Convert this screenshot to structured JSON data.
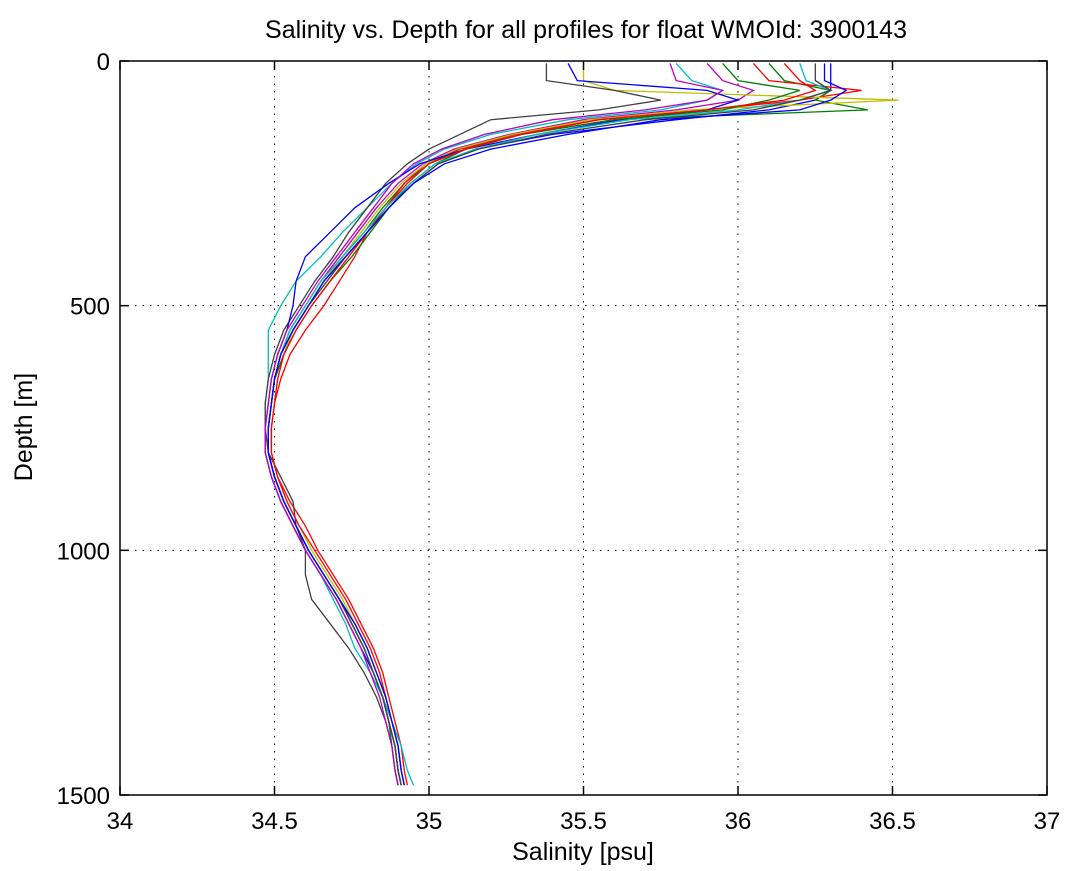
{
  "chart_data": {
    "type": "line",
    "title": "Salinity vs. Depth for all profiles for float WMOId: 3900143",
    "xlabel": "Salinity [psu]",
    "ylabel": "Depth [m]",
    "xlim": [
      34,
      37
    ],
    "ylim": [
      0,
      1500
    ],
    "y_reversed": true,
    "grid": true,
    "x_ticks": [
      34,
      34.5,
      35,
      35.5,
      36,
      36.5,
      37
    ],
    "x_tick_labels": [
      "34",
      "34.5",
      "35",
      "35.5",
      "36",
      "36.5",
      "37"
    ],
    "y_ticks": [
      0,
      500,
      1000,
      1500
    ],
    "y_tick_labels": [
      "0",
      "500",
      "1000",
      "1500"
    ],
    "series_colors": [
      "#0000ff",
      "#008000",
      "#ff0000",
      "#00bfbf",
      "#bf00bf",
      "#bfbf00",
      "#404040"
    ],
    "mean_profile": {
      "depth": [
        5,
        40,
        60,
        80,
        100,
        120,
        150,
        180,
        210,
        250,
        300,
        350,
        400,
        450,
        500,
        550,
        600,
        650,
        700,
        750,
        800,
        850,
        900,
        950,
        1000,
        1050,
        1100,
        1150,
        1200,
        1250,
        1300,
        1350,
        1400,
        1450,
        1480
      ],
      "salinity": [
        36.0,
        36.02,
        36.1,
        36.05,
        35.85,
        35.5,
        35.25,
        35.08,
        34.97,
        34.9,
        34.83,
        34.77,
        34.71,
        34.65,
        34.6,
        34.55,
        34.52,
        34.5,
        34.49,
        34.48,
        34.48,
        34.5,
        34.53,
        34.57,
        34.61,
        34.66,
        34.71,
        34.75,
        34.79,
        34.82,
        34.85,
        34.87,
        34.89,
        34.9,
        34.91
      ]
    },
    "series": [
      {
        "name": "",
        "color": "#0000ff",
        "salinity": [
          36.3,
          36.3,
          36.3,
          36.25,
          36.1,
          35.8,
          35.4,
          35.15,
          35.03,
          34.95,
          34.87,
          34.8,
          34.73,
          34.66,
          34.61,
          34.56,
          34.53,
          34.5,
          34.49,
          34.48,
          34.48,
          34.5,
          34.53,
          34.57,
          34.61,
          34.66,
          34.71,
          34.76,
          34.8,
          34.83,
          34.86,
          34.88,
          34.9,
          34.91,
          34.92
        ]
      },
      {
        "name": "",
        "color": "#008000",
        "salinity": [
          36.1,
          36.15,
          36.3,
          36.25,
          36.42,
          35.6,
          35.3,
          35.1,
          35.0,
          34.92,
          34.85,
          34.79,
          34.72,
          34.66,
          34.61,
          34.56,
          34.52,
          34.5,
          34.49,
          34.48,
          34.48,
          34.5,
          34.53,
          34.57,
          34.61,
          34.66,
          34.71,
          34.75,
          34.79,
          34.82,
          34.85,
          34.87,
          34.88,
          34.89,
          34.9
        ]
      },
      {
        "name": "",
        "color": "#ff0000",
        "salinity": [
          36.05,
          36.1,
          36.4,
          36.2,
          35.9,
          35.55,
          35.28,
          35.1,
          34.99,
          34.92,
          34.86,
          34.8,
          34.76,
          34.71,
          34.66,
          34.6,
          34.55,
          34.52,
          34.5,
          34.49,
          34.49,
          34.51,
          34.55,
          34.6,
          34.64,
          34.69,
          34.74,
          34.78,
          34.82,
          34.85,
          34.87,
          34.89,
          34.91,
          34.92,
          34.93
        ]
      },
      {
        "name": "",
        "color": "#00bfbf",
        "salinity": [
          35.8,
          35.85,
          35.95,
          35.9,
          35.75,
          35.45,
          35.2,
          35.05,
          34.96,
          34.88,
          34.8,
          34.72,
          34.65,
          34.57,
          34.52,
          34.48,
          34.48,
          34.48,
          34.47,
          34.47,
          34.47,
          34.49,
          34.52,
          34.56,
          34.6,
          34.65,
          34.69,
          34.73,
          34.76,
          34.81,
          34.85,
          34.88,
          34.91,
          34.93,
          34.95
        ]
      },
      {
        "name": "",
        "color": "#bf00bf",
        "salinity": [
          35.9,
          35.95,
          36.05,
          36.0,
          35.8,
          35.5,
          35.26,
          35.08,
          34.98,
          34.9,
          34.83,
          34.77,
          34.71,
          34.65,
          34.6,
          34.55,
          34.52,
          34.5,
          34.49,
          34.48,
          34.48,
          34.5,
          34.53,
          34.57,
          34.61,
          34.66,
          34.71,
          34.75,
          34.79,
          34.82,
          34.85,
          34.87,
          34.89,
          34.9,
          34.91
        ]
      },
      {
        "name": "",
        "color": "#bfbf00",
        "salinity": [
          35.5,
          35.5,
          35.6,
          36.52,
          35.85,
          35.52,
          35.27,
          35.09,
          34.99,
          34.91,
          34.84,
          34.78,
          34.72,
          34.66,
          34.61,
          34.56,
          34.53,
          34.51,
          34.5,
          34.49,
          34.49,
          34.51,
          34.54,
          34.58,
          34.62,
          34.67,
          34.72,
          34.76,
          34.8,
          34.83,
          34.86,
          34.88,
          34.9,
          34.91,
          34.92
        ]
      },
      {
        "name": "",
        "color": "#404040",
        "salinity": [
          35.38,
          35.38,
          35.6,
          35.75,
          35.55,
          35.2,
          35.1,
          35.0,
          34.93,
          34.86,
          34.8,
          34.74,
          34.69,
          34.63,
          34.58,
          34.53,
          34.5,
          34.48,
          34.47,
          34.47,
          34.48,
          34.52,
          34.56,
          34.57,
          34.6,
          34.6,
          34.62,
          34.68,
          34.74,
          34.79,
          34.83,
          34.86,
          34.88,
          34.89,
          34.9
        ]
      },
      {
        "name": "",
        "color": "#0000ff",
        "salinity": [
          35.45,
          35.48,
          35.9,
          36.0,
          35.9,
          35.62,
          35.35,
          35.12,
          34.97,
          34.87,
          34.76,
          34.68,
          34.6,
          34.57,
          34.56,
          34.54,
          34.51,
          34.49,
          34.48,
          34.47,
          34.47,
          34.49,
          34.52,
          34.56,
          34.6,
          34.65,
          34.7,
          34.74,
          34.78,
          34.82,
          34.85,
          34.87,
          34.89,
          34.9,
          34.91
        ]
      },
      {
        "name": "",
        "color": "#008000",
        "salinity": [
          35.95,
          36.0,
          36.2,
          36.1,
          35.95,
          35.6,
          35.3,
          35.12,
          35.02,
          34.94,
          34.87,
          34.81,
          34.75,
          34.68,
          34.62,
          34.57,
          34.53,
          34.5,
          34.49,
          34.48,
          34.48,
          34.5,
          34.53,
          34.57,
          34.61,
          34.66,
          34.71,
          34.75,
          34.79,
          34.82,
          34.85,
          34.87,
          34.89,
          34.9,
          34.91
        ]
      },
      {
        "name": "",
        "color": "#ff0000",
        "salinity": [
          36.15,
          36.2,
          36.25,
          36.15,
          35.9,
          35.55,
          35.3,
          35.12,
          35.0,
          34.93,
          34.86,
          34.8,
          34.74,
          34.68,
          34.62,
          34.57,
          34.53,
          34.51,
          34.5,
          34.49,
          34.49,
          34.51,
          34.54,
          34.58,
          34.63,
          34.68,
          34.73,
          34.77,
          34.81,
          34.84,
          34.86,
          34.88,
          34.9,
          34.91,
          34.92
        ]
      },
      {
        "name": "",
        "color": "#00bfbf",
        "salinity": [
          36.2,
          36.22,
          36.3,
          36.2,
          36.0,
          35.65,
          35.35,
          35.15,
          35.02,
          34.94,
          34.86,
          34.79,
          34.72,
          34.65,
          34.6,
          34.55,
          34.52,
          34.5,
          34.49,
          34.48,
          34.48,
          34.5,
          34.53,
          34.57,
          34.61,
          34.66,
          34.71,
          34.75,
          34.79,
          34.82,
          34.85,
          34.87,
          34.89,
          34.9,
          34.91
        ]
      },
      {
        "name": "",
        "color": "#bf00bf",
        "salinity": [
          35.78,
          35.8,
          35.95,
          35.9,
          35.7,
          35.4,
          35.18,
          35.04,
          34.95,
          34.88,
          34.82,
          34.76,
          34.7,
          34.64,
          34.59,
          34.54,
          34.51,
          34.49,
          34.48,
          34.47,
          34.47,
          34.49,
          34.52,
          34.56,
          34.6,
          34.65,
          34.7,
          34.74,
          34.78,
          34.81,
          34.84,
          34.86,
          34.88,
          34.89,
          34.9
        ]
      },
      {
        "name": "",
        "color": "#404040",
        "salinity": [
          36.25,
          36.25,
          36.3,
          36.2,
          36.05,
          35.7,
          35.38,
          35.16,
          35.03,
          34.95,
          34.87,
          34.8,
          34.73,
          34.67,
          34.61,
          34.56,
          34.52,
          34.5,
          34.49,
          34.48,
          34.48,
          34.5,
          34.53,
          34.57,
          34.61,
          34.66,
          34.71,
          34.75,
          34.79,
          34.82,
          34.85,
          34.87,
          34.89,
          34.9,
          34.91
        ]
      },
      {
        "name": "",
        "color": "#0000ff",
        "salinity": [
          36.28,
          36.28,
          36.35,
          36.3,
          36.2,
          35.75,
          35.45,
          35.2,
          35.05,
          34.95,
          34.87,
          34.8,
          34.73,
          34.66,
          34.61,
          34.56,
          34.52,
          34.5,
          34.49,
          34.48,
          34.48,
          34.5,
          34.53,
          34.57,
          34.61,
          34.66,
          34.71,
          34.76,
          34.8,
          34.83,
          34.86,
          34.88,
          34.9,
          34.91,
          34.92
        ]
      }
    ]
  }
}
